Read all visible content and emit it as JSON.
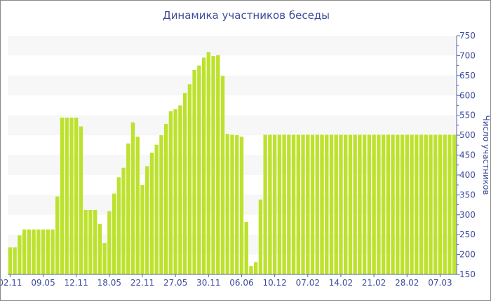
{
  "chart_data": {
    "type": "bar",
    "title": "Динамика участников беседы",
    "ylabel": "Число участников",
    "xlabel": "",
    "ylim": [
      150,
      750
    ],
    "yticks": [
      150,
      200,
      250,
      300,
      350,
      400,
      450,
      500,
      550,
      600,
      650,
      700,
      750
    ],
    "y_axis_side": "right",
    "grid": "alternating horizontal bands",
    "x_tick_every": 7,
    "x_tick_labels": [
      "02.11",
      "09.05",
      "12.11",
      "18.05",
      "22.11",
      "27.05",
      "30.11",
      "06.06",
      "10.12",
      "07.02",
      "14.02",
      "21.02",
      "28.02",
      "07.03"
    ],
    "values": [
      218,
      218,
      248,
      263,
      263,
      263,
      263,
      263,
      263,
      263,
      346,
      544,
      544,
      544,
      544,
      522,
      312,
      312,
      312,
      277,
      229,
      309,
      353,
      394,
      418,
      479,
      532,
      496,
      375,
      422,
      456,
      476,
      500,
      528,
      560,
      565,
      575,
      606,
      628,
      664,
      675,
      695,
      709,
      699,
      701,
      649,
      503,
      501,
      500,
      496,
      282,
      171,
      181,
      338,
      501,
      501,
      501,
      501,
      501,
      501,
      501,
      501,
      501,
      501,
      501,
      501,
      501,
      501,
      501,
      501,
      501,
      501,
      501,
      501,
      501,
      501,
      501,
      501,
      501,
      501,
      501,
      501,
      501,
      501,
      501,
      501,
      501,
      501,
      501,
      501,
      501,
      501,
      501,
      501,
      501
    ],
    "colors": {
      "bar": "#bde22e",
      "text": "#3b4c9b",
      "band": "#f7f7f7",
      "axis": "#5566aa"
    }
  }
}
